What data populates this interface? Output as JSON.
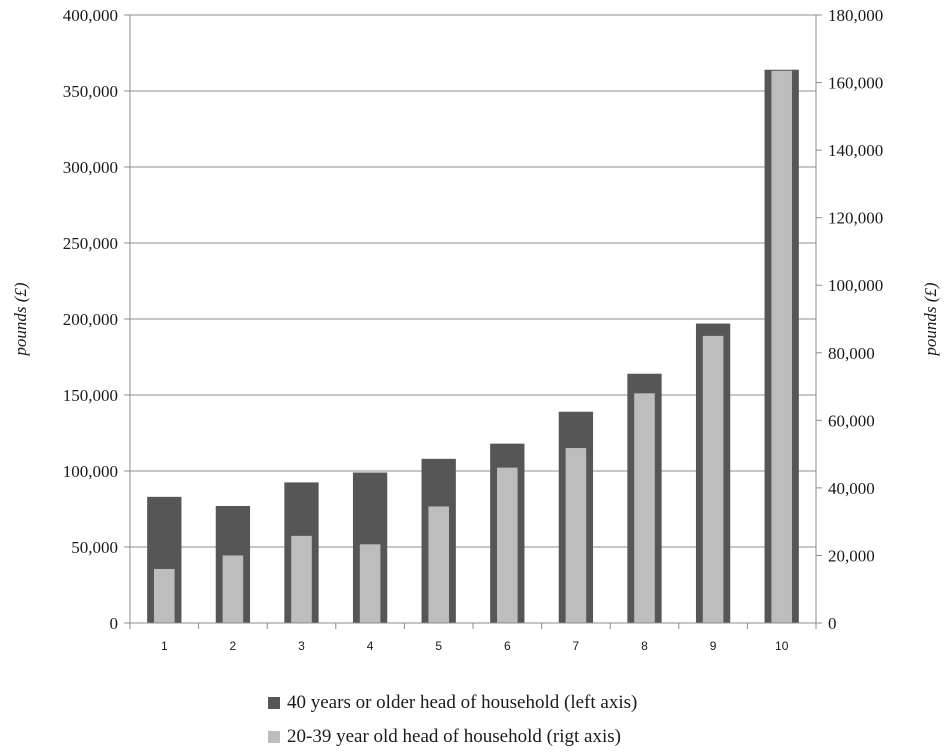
{
  "chart_data": {
    "type": "bar",
    "categories": [
      "1",
      "2",
      "3",
      "4",
      "5",
      "6",
      "7",
      "8",
      "9",
      "10"
    ],
    "series": [
      {
        "name": "40 years or older head of household (left axis)",
        "axis": "left",
        "color": "#565656",
        "values": [
          83000,
          77000,
          92500,
          99000,
          108000,
          118000,
          139000,
          164000,
          197000,
          364000
        ]
      },
      {
        "name": "20-39 year old head of household (rigt axis)",
        "axis": "right",
        "color": "#bdbdbd",
        "values": [
          16000,
          20000,
          25800,
          23300,
          34500,
          46000,
          51800,
          68000,
          85000,
          163500
        ]
      }
    ],
    "left_axis": {
      "label": "pounds (£)",
      "ylim": [
        0,
        400000
      ],
      "ticks": [
        "0",
        "50,000",
        "100,000",
        "150,000",
        "200,000",
        "250,000",
        "300,000",
        "350,000",
        "400,000"
      ]
    },
    "right_axis": {
      "label": "pounds (£)",
      "ylim": [
        0,
        180000
      ],
      "ticks": [
        "0",
        "20,000",
        "40,000",
        "60,000",
        "80,000",
        "100,000",
        "120,000",
        "140,000",
        "160,000",
        "180,000"
      ]
    },
    "grid": true,
    "legend_position": "bottom"
  }
}
